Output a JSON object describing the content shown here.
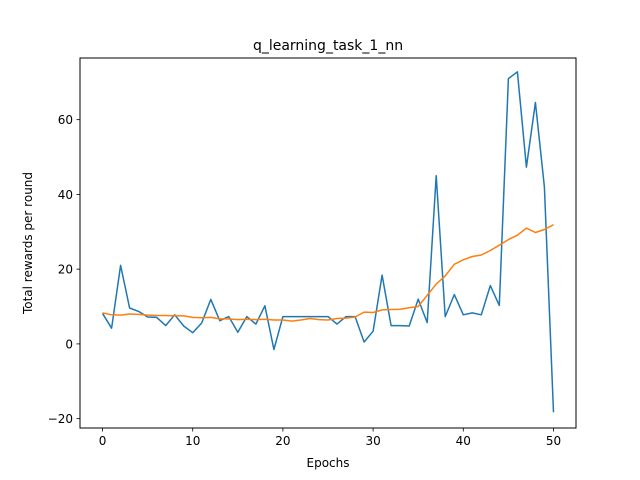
{
  "chart_data": {
    "type": "line",
    "title": "q_learning_task_1_nn",
    "xlabel": "Epochs",
    "ylabel": "Total rewards per round",
    "xlim": [
      -2.5,
      52.5
    ],
    "ylim": [
      -22.5,
      76.5
    ],
    "xticks": [
      0,
      10,
      20,
      30,
      40,
      50
    ],
    "yticks": [
      -20,
      0,
      20,
      40,
      60
    ],
    "grid": false,
    "x": [
      0,
      1,
      2,
      3,
      4,
      5,
      6,
      7,
      8,
      9,
      10,
      11,
      12,
      13,
      14,
      15,
      16,
      17,
      18,
      19,
      20,
      21,
      22,
      23,
      24,
      25,
      26,
      27,
      28,
      29,
      30,
      31,
      32,
      33,
      34,
      35,
      36,
      37,
      38,
      39,
      40,
      41,
      42,
      43,
      44,
      45,
      46,
      47,
      48,
      49,
      50
    ],
    "series": [
      {
        "color": "#1f77b4",
        "values": [
          8.2,
          4.2,
          21.0,
          9.6,
          8.7,
          7.2,
          7.1,
          4.9,
          7.8,
          4.8,
          3.0,
          5.6,
          11.9,
          6.2,
          7.3,
          3.1,
          7.3,
          5.3,
          10.2,
          -1.5,
          7.3,
          7.3,
          7.3,
          7.3,
          7.3,
          7.3,
          5.3,
          7.3,
          7.3,
          0.5,
          3.4,
          18.4,
          4.9,
          4.9,
          4.8,
          12.0,
          5.7,
          45.0,
          7.3,
          13.2,
          7.8,
          8.3,
          7.8,
          15.6,
          10.3,
          71.0,
          72.8,
          47.3,
          64.6,
          42.0,
          -18.3
        ]
      },
      {
        "color": "#ff7f0e",
        "values": [
          8.3,
          7.8,
          7.7,
          8.0,
          7.9,
          7.7,
          7.6,
          7.6,
          7.5,
          7.5,
          7.1,
          7.0,
          7.1,
          6.7,
          6.7,
          6.5,
          6.6,
          6.5,
          6.6,
          6.4,
          6.4,
          6.1,
          6.4,
          6.8,
          6.5,
          6.4,
          6.8,
          6.9,
          7.2,
          8.5,
          8.4,
          9.1,
          9.2,
          9.3,
          9.7,
          10.0,
          13.0,
          16.0,
          18.2,
          21.3,
          22.5,
          23.4,
          23.8,
          25.0,
          26.4,
          27.9,
          29.1,
          31.0,
          29.8,
          30.6,
          31.9
        ]
      }
    ]
  }
}
